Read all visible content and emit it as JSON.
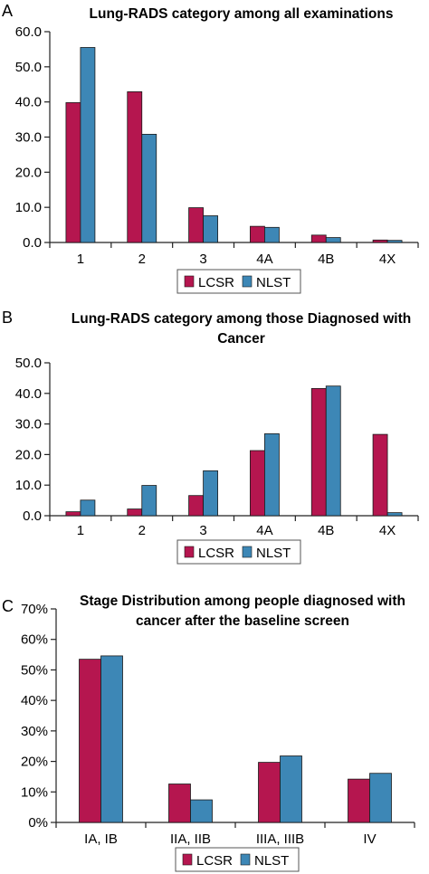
{
  "colors": {
    "lcsr": "#b5164f",
    "nlst": "#3d87b6",
    "axis": "#222222"
  },
  "chart_data": [
    {
      "panel_letter": "A",
      "type": "bar",
      "title_lines": [
        "Lung-RADS category among all examinations"
      ],
      "categories": [
        "1",
        "2",
        "3",
        "4A",
        "4B",
        "4X"
      ],
      "series": [
        {
          "name": "LCSR",
          "values": [
            39.8,
            42.9,
            9.9,
            4.6,
            2.1,
            0.7
          ]
        },
        {
          "name": "NLST",
          "values": [
            55.5,
            30.8,
            7.6,
            4.3,
            1.4,
            0.6
          ]
        }
      ],
      "ylim": [
        0,
        60
      ],
      "yticks": [
        0,
        10,
        20,
        30,
        40,
        50,
        60
      ],
      "ytick_labels": [
        "0.0",
        "10.0",
        "20.0",
        "30.0",
        "40.0",
        "50.0",
        "60.0"
      ],
      "legend": [
        "LCSR",
        "NLST"
      ],
      "legend_position": "bottom-center",
      "grid": false
    },
    {
      "panel_letter": "B",
      "type": "bar",
      "title_lines": [
        "Lung-RADS category among those Diagnosed with",
        "Cancer"
      ],
      "categories": [
        "1",
        "2",
        "3",
        "4A",
        "4B",
        "4X"
      ],
      "series": [
        {
          "name": "LCSR",
          "values": [
            1.3,
            2.2,
            6.6,
            21.3,
            41.6,
            26.6
          ]
        },
        {
          "name": "NLST",
          "values": [
            5.1,
            9.9,
            14.7,
            26.8,
            42.4,
            1.0
          ]
        }
      ],
      "ylim": [
        0,
        50
      ],
      "yticks": [
        0,
        10,
        20,
        30,
        40,
        50
      ],
      "ytick_labels": [
        "0.0",
        "10.0",
        "20.0",
        "30.0",
        "40.0",
        "50.0"
      ],
      "legend": [
        "LCSR",
        "NLST"
      ],
      "legend_position": "bottom-center",
      "grid": false
    },
    {
      "panel_letter": "C",
      "type": "bar",
      "title_lines": [
        "Stage Distribution among people diagnosed with",
        "cancer after the baseline screen"
      ],
      "categories": [
        "IA, IB",
        "IIA, IIB",
        "IIIA, IIIB",
        "IV"
      ],
      "series": [
        {
          "name": "LCSR",
          "values": [
            53.5,
            12.6,
            19.7,
            14.2
          ]
        },
        {
          "name": "NLST",
          "values": [
            54.6,
            7.4,
            21.8,
            16.1
          ]
        }
      ],
      "ylim": [
        0,
        70
      ],
      "yticks": [
        0,
        10,
        20,
        30,
        40,
        50,
        60,
        70
      ],
      "ytick_labels": [
        "0%",
        "10%",
        "20%",
        "30%",
        "40%",
        "50%",
        "60%",
        "70%"
      ],
      "legend": [
        "LCSR",
        "NLST"
      ],
      "legend_position": "bottom-center",
      "grid": false
    }
  ]
}
